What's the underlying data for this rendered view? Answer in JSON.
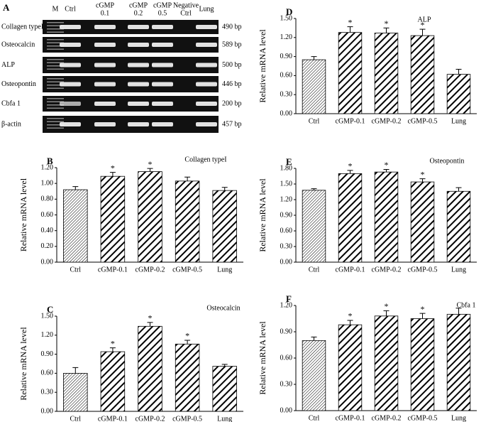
{
  "gel": {
    "panel": "A",
    "lanes": [
      "M",
      "Ctrl",
      [
        "cGMP",
        "0.1"
      ],
      [
        "cGMP",
        "0.2"
      ],
      [
        "cGMP",
        "0.5"
      ],
      [
        "Negative",
        "Ctrl"
      ],
      "Lung"
    ],
    "rows": [
      {
        "label": "Collagen typeI",
        "size": "490 bp"
      },
      {
        "label": "Osteocalcin",
        "size": "589 bp"
      },
      {
        "label": "ALP",
        "size": "500 bp"
      },
      {
        "label": "Osteopontin",
        "size": "446 bp"
      },
      {
        "label": "Cbfa 1",
        "size": "200 bp"
      },
      {
        "label": "β-actin",
        "size": "457 bp"
      }
    ]
  },
  "chart_data": [
    {
      "type": "bar",
      "panel": "B",
      "title": "Collagen typeI",
      "y_label": "Relative mRNA level",
      "color": "#000",
      "categories": [
        "Ctrl",
        "cGMP-0.1",
        "cGMP-0.2",
        "cGMP-0.5",
        "Lung"
      ],
      "values": [
        0.92,
        1.09,
        1.15,
        1.03,
        0.91
      ],
      "errors": [
        0.04,
        0.05,
        0.04,
        0.05,
        0.04
      ],
      "significance": [
        null,
        "*",
        "*",
        null,
        null
      ],
      "ylim": [
        0,
        1.2
      ],
      "yticks": [
        {
          "value": 0,
          "label": "0.00"
        },
        {
          "value": 0.2,
          "label": "0.20"
        },
        {
          "value": 0.4,
          "label": "0.40"
        },
        {
          "value": 0.6,
          "label": "0.60"
        },
        {
          "value": 0.8,
          "label": "0.80"
        },
        {
          "value": 1.0,
          "label": "1.00"
        },
        {
          "value": 1.2,
          "label": "1.20"
        }
      ]
    },
    {
      "type": "bar",
      "panel": "C",
      "title": "Osteocalcin",
      "y_label": "Relative mRNA level",
      "color": "#000",
      "categories": [
        "Ctrl",
        "cGMP-0.1",
        "cGMP-0.2",
        "cGMP-0.5",
        "Lung"
      ],
      "values": [
        0.6,
        0.94,
        1.34,
        1.06,
        0.71
      ],
      "errors": [
        0.09,
        0.06,
        0.06,
        0.06,
        0.03
      ],
      "significance": [
        null,
        "*",
        "*",
        "*",
        null
      ],
      "ylim": [
        0,
        1.5
      ],
      "yticks": [
        {
          "value": 0,
          "label": "0.00"
        },
        {
          "value": 0.3,
          "label": "0.30"
        },
        {
          "value": 0.6,
          "label": "0.60"
        },
        {
          "value": 0.9,
          "label": "0.90"
        },
        {
          "value": 1.2,
          "label": "1.20"
        },
        {
          "value": 1.5,
          "label": "1.50"
        }
      ]
    },
    {
      "type": "bar",
      "panel": "D",
      "title": "ALP",
      "y_label": "Relative mRNA level",
      "color": "#000",
      "categories": [
        "Ctrl",
        "cGMP-0.1",
        "cGMP-0.2",
        "cGMP-0.5",
        "Lung"
      ],
      "values": [
        0.85,
        1.28,
        1.27,
        1.23,
        0.62
      ],
      "errors": [
        0.05,
        0.09,
        0.08,
        0.1,
        0.08
      ],
      "significance": [
        null,
        "*",
        "*",
        "*",
        null
      ],
      "ylim": [
        0,
        1.5
      ],
      "yticks": [
        {
          "value": 0,
          "label": "0.00"
        },
        {
          "value": 0.3,
          "label": "0.30"
        },
        {
          "value": 0.6,
          "label": "0.60"
        },
        {
          "value": 0.9,
          "label": "0.90"
        },
        {
          "value": 1.2,
          "label": "1.20"
        },
        {
          "value": 1.5,
          "label": "1.50"
        }
      ]
    },
    {
      "type": "bar",
      "panel": "E",
      "title": "Osteopontin",
      "y_label": "Relative mRNA level",
      "color": "#000",
      "categories": [
        "Ctrl",
        "cGMP-0.1",
        "cGMP-0.2",
        "cGMP-0.5",
        "Lung"
      ],
      "values": [
        1.38,
        1.7,
        1.73,
        1.54,
        1.36
      ],
      "errors": [
        0.03,
        0.06,
        0.05,
        0.06,
        0.07
      ],
      "significance": [
        null,
        "*",
        "*",
        "*",
        null
      ],
      "ylim": [
        0,
        1.8
      ],
      "yticks": [
        {
          "value": 0,
          "label": "0.00"
        },
        {
          "value": 0.3,
          "label": "0.30"
        },
        {
          "value": 0.6,
          "label": "0.60"
        },
        {
          "value": 0.9,
          "label": "0.90"
        },
        {
          "value": 1.2,
          "label": "1.20"
        },
        {
          "value": 1.5,
          "label": "1.50"
        },
        {
          "value": 1.8,
          "label": "1.80"
        }
      ]
    },
    {
      "type": "bar",
      "panel": "F",
      "title": "Cbfa 1",
      "y_label": "Relative mRNA level",
      "color": "#000",
      "categories": [
        "Ctrl",
        "cGMP-0.1",
        "cGMP-0.2",
        "cGMP-0.5",
        "Lung"
      ],
      "values": [
        0.8,
        0.98,
        1.08,
        1.05,
        1.1
      ],
      "errors": [
        0.04,
        0.05,
        0.06,
        0.06,
        0.07
      ],
      "significance": [
        null,
        "*",
        "*",
        "*",
        null
      ],
      "ylim": [
        0,
        1.2
      ],
      "yticks": [
        {
          "value": 0,
          "label": "0.00"
        },
        {
          "value": 0.3,
          "label": "0.30"
        },
        {
          "value": 0.6,
          "label": "0.60"
        },
        {
          "value": 0.9,
          "label": "0.90"
        },
        {
          "value": 1.2,
          "label": "1.20"
        }
      ]
    }
  ]
}
